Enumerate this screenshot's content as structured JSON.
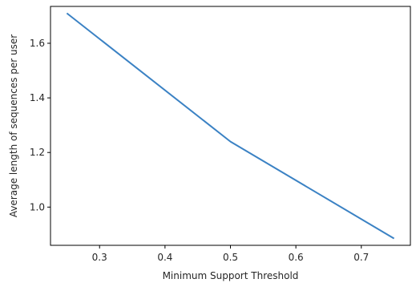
{
  "chart_data": {
    "type": "line",
    "title": "",
    "xlabel": "Minimum Support Threshold",
    "ylabel": "Average length of sequences per user",
    "x": [
      0.25,
      0.5,
      0.75
    ],
    "series": [
      {
        "values": [
          1.71,
          1.24,
          0.885
        ],
        "color": "#3b82c4"
      }
    ],
    "xlim": [
      0.225,
      0.775
    ],
    "ylim": [
      0.86,
      1.735
    ],
    "xticks": [
      0.3,
      0.4,
      0.5,
      0.6,
      0.7
    ],
    "xtick_labels": [
      "0.3",
      "0.4",
      "0.5",
      "0.6",
      "0.7"
    ],
    "yticks": [
      1.0,
      1.2,
      1.4,
      1.6
    ],
    "ytick_labels": [
      "1.0",
      "1.2",
      "1.4",
      "1.6"
    ],
    "grid": false,
    "legend": "none"
  }
}
